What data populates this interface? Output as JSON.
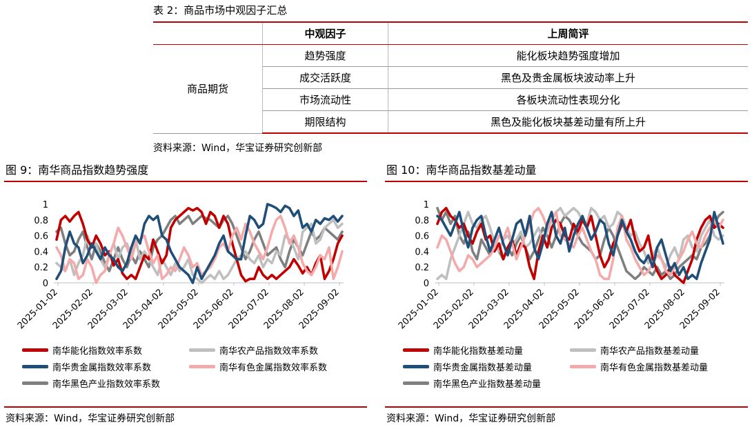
{
  "table2": {
    "title": "表 2：商品市场中观因子汇总",
    "headers": [
      "",
      "中观因子",
      "上周简评"
    ],
    "category": "商品期货",
    "rows": [
      {
        "factor": "趋势强度",
        "comment": "能化板块趋势强度增加"
      },
      {
        "factor": "成交活跃度",
        "comment": "黑色及贵金属板块波动率上升"
      },
      {
        "factor": "市场流动性",
        "comment": "各板块流动性表现分化"
      },
      {
        "factor": "期限结构",
        "comment": "黑色及能化板块基差动量有所上升"
      }
    ],
    "source": "资料来源：Wind，华宝证券研究创新部"
  },
  "colors": {
    "accent": "#c00000",
    "neng_hua": "#c00000",
    "nong_chan_pin": "#bfbfbf",
    "gui_jin_shu": "#1f4e79",
    "you_se": "#f4aaaa",
    "hei_se": "#7f7f7f"
  },
  "chart_data": [
    {
      "type": "line",
      "title": "图 9：南华商品指数趋势强度",
      "x_ticks": [
        "2025-01-02",
        "2025-02-02",
        "2025-03-02",
        "2025-04-02",
        "2025-05-02",
        "2025-06-02",
        "2025-07-02",
        "2025-08-02",
        "2025-09-02"
      ],
      "ylim": [
        0,
        1
      ],
      "y_ticks": [
        "0",
        "0.2",
        "0.4",
        "0.6",
        "0.8",
        "1"
      ],
      "legend_position": "bottom",
      "source": "资料来源：Wind，华宝证券研究创新部",
      "series": [
        {
          "name": "南华能化指数效率系数",
          "color": "#c00000",
          "values": [
            0.55,
            0.8,
            0.85,
            0.78,
            0.85,
            0.9,
            0.75,
            0.55,
            0.45,
            0.6,
            0.5,
            0.35,
            0.4,
            0.22,
            0.3,
            0.12,
            0.05,
            0.1,
            0.05,
            0.2,
            0.35,
            0.3,
            0.55,
            0.4,
            0.25,
            0.35,
            0.7,
            0.8,
            0.85,
            0.9,
            0.95,
            0.92,
            0.95,
            0.9,
            0.75,
            0.9,
            0.85,
            0.7,
            0.85,
            0.75,
            0.5,
            0.3,
            0.1,
            0.02,
            0.05,
            0.05,
            0.2,
            0.1,
            0.05,
            0.1,
            0.05,
            0.1,
            0.15,
            0.2,
            0.3,
            0.22,
            0.12,
            0.2,
            0.1,
            0.25,
            0.35,
            0.05,
            0.15,
            0.3,
            0.5,
            0.6
          ]
        },
        {
          "name": "南华农产品指数效率系数",
          "color": "#bfbfbf",
          "values": [
            0.25,
            0.2,
            0.15,
            0.3,
            0.1,
            0.25,
            0.35,
            0.6,
            0.45,
            0.5,
            0.3,
            0.2,
            0.35,
            0.5,
            0.3,
            0.45,
            0.5,
            0.35,
            0.55,
            0.3,
            0.4,
            0.3,
            0.2,
            0.1,
            0.3,
            0.2,
            0.1,
            0.25,
            0.15,
            0.2,
            0.3,
            0.1,
            0.05,
            0.0,
            0.05,
            0.1,
            0.05,
            0.15,
            0.05,
            0.1,
            0.2,
            0.3,
            0.35,
            0.4,
            0.3,
            0.25,
            0.35,
            0.2,
            0.3,
            0.25,
            0.4,
            0.35,
            0.6,
            0.55,
            0.45,
            0.3,
            0.65,
            0.7,
            0.75,
            0.5,
            0.55,
            0.7,
            0.75,
            0.8,
            0.7,
            0.75
          ]
        },
        {
          "name": "南华贵金属指数效率系数",
          "color": "#1f4e79",
          "values": [
            0.05,
            0.15,
            0.45,
            0.65,
            0.5,
            0.45,
            0.25,
            0.35,
            0.5,
            0.4,
            0.3,
            0.45,
            0.35,
            0.3,
            0.2,
            0.15,
            0.25,
            0.45,
            0.6,
            0.5,
            0.75,
            0.85,
            0.8,
            0.85,
            0.6,
            0.55,
            0.4,
            0.3,
            0.2,
            0.15,
            0.1,
            0.0,
            0.2,
            0.05,
            0.15,
            0.25,
            0.35,
            0.5,
            0.6,
            0.4,
            0.35,
            0.3,
            0.3,
            0.6,
            0.85,
            0.8,
            0.7,
            0.75,
            1.0,
            0.98,
            0.95,
            0.9,
            0.98,
            0.95,
            0.85,
            0.92,
            0.7,
            0.75,
            0.65,
            0.8,
            0.75,
            0.82,
            0.8,
            0.85,
            0.78,
            0.85
          ]
        },
        {
          "name": "南华有色金属指数效率系数",
          "color": "#f4aaaa",
          "values": [
            0.45,
            0.35,
            0.15,
            0.3,
            0.25,
            0.05,
            0.1,
            0.3,
            0.2,
            0.0,
            0.1,
            0.15,
            0.35,
            0.5,
            0.7,
            0.6,
            0.45,
            0.3,
            0.5,
            0.55,
            0.6,
            0.4,
            0.25,
            0.35,
            0.05,
            0.1,
            0.2,
            0.15,
            0.3,
            0.45,
            0.35,
            0.2,
            0.25,
            0.1,
            0.15,
            0.2,
            0.3,
            0.45,
            0.5,
            0.4,
            0.6,
            0.7,
            0.55,
            0.75,
            0.65,
            0.5,
            0.4,
            0.3,
            0.45,
            0.65,
            0.8,
            0.85,
            0.7,
            0.5,
            0.6,
            0.45,
            0.25,
            0.15,
            0.1,
            0.2,
            0.35,
            0.3,
            0.45,
            0.05,
            0.2,
            0.4
          ]
        },
        {
          "name": "南华黑色产业指数效率系数",
          "color": "#7f7f7f",
          "values": [
            0.65,
            0.7,
            0.5,
            0.35,
            0.4,
            0.55,
            0.65,
            0.45,
            0.3,
            0.5,
            0.4,
            0.25,
            0.15,
            0.3,
            0.45,
            0.3,
            0.2,
            0.35,
            0.25,
            0.4,
            0.3,
            0.2,
            0.45,
            0.55,
            0.6,
            0.7,
            0.8,
            0.85,
            0.75,
            0.8,
            0.85,
            0.75,
            0.8,
            0.85,
            0.82,
            0.8,
            0.75,
            0.7,
            0.8,
            0.85,
            0.75,
            0.6,
            0.45,
            0.3,
            0.4,
            0.55,
            0.65,
            0.5,
            0.35,
            0.4,
            0.45,
            0.3,
            0.2,
            0.4,
            0.55,
            0.45,
            0.35,
            0.5,
            0.65,
            0.55,
            0.6,
            0.7,
            0.65,
            0.6,
            0.55,
            0.65
          ]
        }
      ]
    },
    {
      "type": "line",
      "title": "图 10：南华商品指数基差动量",
      "x_ticks": [
        "2025-01-02",
        "2025-02-02",
        "2025-03-02",
        "2025-04-02",
        "2025-05-02",
        "2025-06-02",
        "2025-07-02",
        "2025-08-02",
        "2025-09-02"
      ],
      "ylim": [
        0,
        1
      ],
      "y_ticks": [
        "0",
        "0.2",
        "0.4",
        "0.6",
        "0.8",
        "1"
      ],
      "legend_position": "bottom",
      "source": "资料来源：Wind，华宝证券研究创新部",
      "series": [
        {
          "name": "南华能化指数基差动量",
          "color": "#c00000",
          "values": [
            0.75,
            0.9,
            0.95,
            0.85,
            0.8,
            0.7,
            0.75,
            0.6,
            0.5,
            0.65,
            0.75,
            0.55,
            0.6,
            0.4,
            0.5,
            0.3,
            0.45,
            0.55,
            0.35,
            0.5,
            0.45,
            0.2,
            0.05,
            0.4,
            0.6,
            0.45,
            0.7,
            0.8,
            0.75,
            0.6,
            0.55,
            0.75,
            0.65,
            0.8,
            0.7,
            0.85,
            0.6,
            0.35,
            0.2,
            0.3,
            0.5,
            0.6,
            0.75,
            0.65,
            0.8,
            0.55,
            0.4,
            0.45,
            0.6,
            0.3,
            0.15,
            0.05,
            0.1,
            0.2,
            0.1,
            0.05,
            0.0,
            0.15,
            0.3,
            0.55,
            0.7,
            0.8,
            0.85,
            0.7,
            0.75,
            0.7
          ]
        },
        {
          "name": "南华农产品指数基差动量",
          "color": "#bfbfbf",
          "values": [
            0.05,
            0.1,
            0.05,
            0.3,
            0.45,
            0.6,
            0.75,
            0.9,
            0.75,
            0.7,
            0.8,
            0.85,
            0.7,
            0.5,
            0.4,
            0.55,
            0.6,
            0.5,
            0.55,
            0.65,
            0.45,
            0.5,
            0.6,
            0.7,
            0.55,
            0.65,
            0.8,
            0.9,
            0.95,
            0.85,
            0.9,
            0.95,
            0.9,
            0.8,
            0.75,
            0.95,
            0.9,
            0.8,
            0.85,
            0.7,
            0.75,
            0.9,
            0.85,
            0.7,
            0.6,
            0.65,
            0.5,
            0.4,
            0.25,
            0.35,
            0.45,
            0.3,
            0.2,
            0.35,
            0.45,
            0.3,
            0.55,
            0.6,
            0.45,
            0.4,
            0.6,
            0.7,
            0.8,
            0.6,
            0.55,
            0.6
          ]
        },
        {
          "name": "南华贵金属指数基差动量",
          "color": "#1f4e79",
          "values": [
            0.85,
            0.8,
            0.7,
            0.6,
            0.75,
            0.9,
            0.65,
            0.45,
            0.7,
            0.8,
            0.85,
            0.6,
            0.4,
            0.55,
            0.7,
            0.5,
            0.35,
            0.55,
            0.75,
            0.8,
            0.6,
            0.85,
            0.45,
            0.3,
            0.5,
            0.75,
            0.9,
            0.6,
            0.5,
            0.7,
            0.4,
            0.6,
            0.75,
            0.85,
            0.7,
            0.55,
            0.65,
            0.8,
            0.75,
            0.5,
            0.35,
            0.6,
            0.8,
            0.65,
            0.55,
            0.4,
            0.3,
            0.25,
            0.35,
            0.2,
            0.45,
            0.55,
            0.35,
            0.15,
            0.25,
            0.1,
            0.2,
            0.05,
            0.1,
            0.05,
            0.25,
            0.4,
            0.55,
            0.9,
            0.7,
            0.5
          ]
        },
        {
          "name": "南华有色金属指数基差动量",
          "color": "#f4aaaa",
          "values": [
            0.45,
            0.6,
            0.55,
            0.4,
            0.25,
            0.15,
            0.2,
            0.35,
            0.3,
            0.2,
            0.25,
            0.3,
            0.35,
            0.45,
            0.6,
            0.55,
            0.7,
            0.5,
            0.3,
            0.45,
            0.6,
            0.75,
            0.9,
            0.95,
            0.85,
            0.7,
            0.8,
            0.9,
            0.6,
            0.55,
            0.5,
            0.45,
            0.6,
            0.7,
            0.55,
            0.4,
            0.3,
            0.1,
            0.05,
            0.05,
            0.3,
            0.7,
            0.85,
            0.55,
            0.45,
            0.3,
            0.2,
            0.1,
            0.15,
            0.25,
            0.35,
            0.3,
            0.15,
            0.1,
            0.2,
            0.3,
            0.4,
            0.55,
            0.65,
            0.5,
            0.45,
            0.6,
            0.7,
            0.8,
            0.7,
            0.8
          ]
        },
        {
          "name": "南华黑色产业指数基差动量",
          "color": "#7f7f7f",
          "values": [
            0.95,
            0.8,
            0.9,
            0.75,
            0.85,
            0.6,
            0.5,
            0.65,
            0.4,
            0.3,
            0.55,
            0.45,
            0.35,
            0.5,
            0.4,
            0.3,
            0.45,
            0.35,
            0.5,
            0.6,
            0.45,
            0.3,
            0.4,
            0.55,
            0.7,
            0.6,
            0.45,
            0.6,
            0.75,
            0.85,
            0.8,
            0.7,
            0.6,
            0.5,
            0.45,
            0.4,
            0.3,
            0.35,
            0.55,
            0.7,
            0.6,
            0.45,
            0.3,
            0.15,
            0.1,
            0.05,
            0.1,
            0.2,
            0.15,
            0.1,
            0.2,
            0.1,
            0.15,
            0.05,
            0.1,
            0.2,
            0.25,
            0.3,
            0.35,
            0.3,
            0.45,
            0.5,
            0.6,
            0.75,
            0.85,
            0.9
          ]
        }
      ]
    }
  ]
}
